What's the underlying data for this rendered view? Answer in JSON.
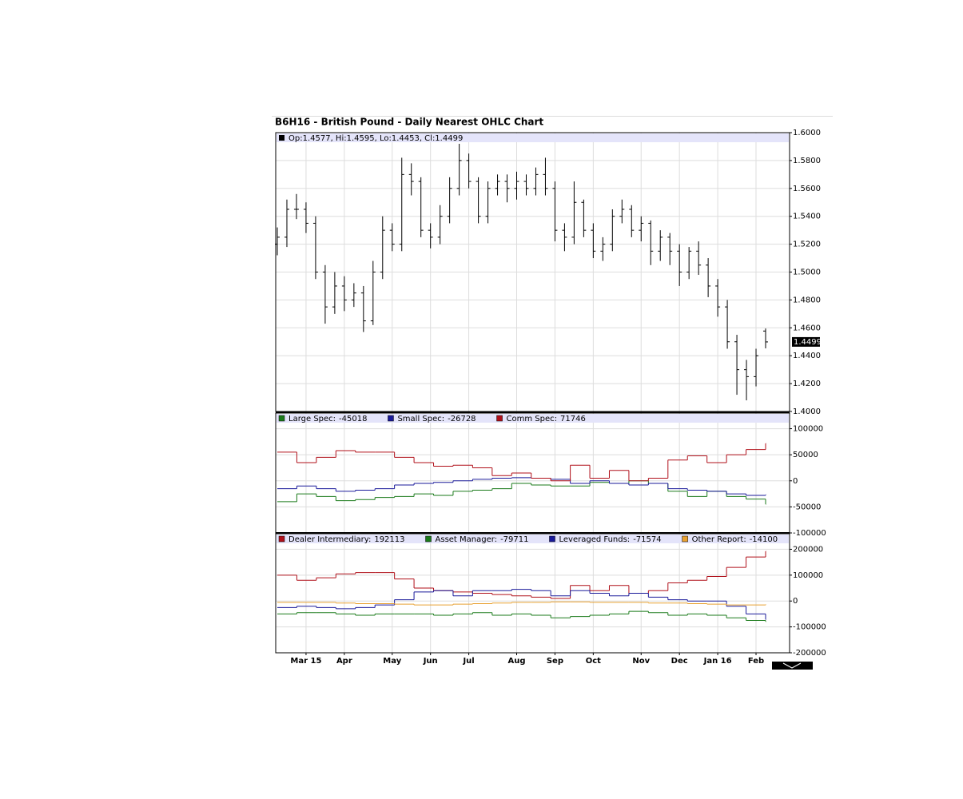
{
  "chart_data": [
    {
      "type": "ohlc",
      "title": "B6H16 - British Pound - Daily Nearest OHLC Chart",
      "legend_text": "Op:1.4577, Hi:1.4595, Lo:1.4453, Cl:1.4499",
      "color": "#000000",
      "categories": [
        null,
        null,
        null,
        "Mar 15",
        null,
        null,
        null,
        "Apr",
        null,
        null,
        null,
        null,
        "May",
        null,
        null,
        null,
        "Jun",
        null,
        null,
        null,
        "Jul",
        null,
        null,
        null,
        null,
        "Aug",
        null,
        null,
        null,
        "Sep",
        null,
        null,
        null,
        "Oct",
        null,
        null,
        null,
        null,
        "Nov",
        null,
        null,
        null,
        "Dec",
        null,
        null,
        null,
        "Jan 16",
        null,
        null,
        null,
        "Feb",
        null
      ],
      "open": [
        1.52,
        1.525,
        1.545,
        1.545,
        1.535,
        1.5,
        1.475,
        1.49,
        1.48,
        1.485,
        1.465,
        1.5,
        1.53,
        1.52,
        1.57,
        1.565,
        1.53,
        1.525,
        1.54,
        1.56,
        1.58,
        1.565,
        1.54,
        1.56,
        1.565,
        1.56,
        1.565,
        1.56,
        1.57,
        1.56,
        1.53,
        1.525,
        1.55,
        1.53,
        1.515,
        1.52,
        1.54,
        1.545,
        1.53,
        1.535,
        1.515,
        1.525,
        1.515,
        1.5,
        1.515,
        1.505,
        1.49,
        1.475,
        1.45,
        1.43,
        1.425,
        1.4577
      ],
      "high": [
        1.532,
        1.552,
        1.556,
        1.55,
        1.54,
        1.505,
        1.5,
        1.497,
        1.492,
        1.49,
        1.508,
        1.54,
        1.535,
        1.582,
        1.578,
        1.568,
        1.535,
        1.548,
        1.568,
        1.592,
        1.585,
        1.568,
        1.565,
        1.57,
        1.57,
        1.572,
        1.57,
        1.575,
        1.582,
        1.565,
        1.535,
        1.565,
        1.552,
        1.535,
        1.525,
        1.545,
        1.552,
        1.548,
        1.54,
        1.537,
        1.53,
        1.528,
        1.52,
        1.518,
        1.522,
        1.51,
        1.495,
        1.48,
        1.455,
        1.437,
        1.445,
        1.4595
      ],
      "low": [
        1.512,
        1.518,
        1.538,
        1.528,
        1.495,
        1.463,
        1.47,
        1.472,
        1.475,
        1.457,
        1.462,
        1.495,
        1.515,
        1.515,
        1.555,
        1.525,
        1.517,
        1.52,
        1.535,
        1.555,
        1.56,
        1.535,
        1.535,
        1.555,
        1.55,
        1.552,
        1.555,
        1.555,
        1.555,
        1.522,
        1.515,
        1.52,
        1.525,
        1.51,
        1.508,
        1.515,
        1.535,
        1.525,
        1.522,
        1.505,
        1.508,
        1.505,
        1.49,
        1.495,
        1.498,
        1.482,
        1.468,
        1.445,
        1.412,
        1.408,
        1.418,
        1.4453
      ],
      "close": [
        1.525,
        1.545,
        1.545,
        1.535,
        1.5,
        1.475,
        1.49,
        1.48,
        1.485,
        1.465,
        1.5,
        1.53,
        1.52,
        1.57,
        1.565,
        1.53,
        1.525,
        1.54,
        1.56,
        1.58,
        1.565,
        1.54,
        1.56,
        1.565,
        1.56,
        1.565,
        1.56,
        1.57,
        1.56,
        1.53,
        1.525,
        1.55,
        1.53,
        1.515,
        1.52,
        1.54,
        1.545,
        1.53,
        1.535,
        1.515,
        1.525,
        1.515,
        1.5,
        1.515,
        1.505,
        1.49,
        1.475,
        1.45,
        1.43,
        1.425,
        1.44,
        1.4499
      ],
      "ylim": [
        1.4,
        1.6
      ],
      "yticks": [
        {
          "value": 1.6,
          "label": "1.6000"
        },
        {
          "value": 1.58,
          "label": "1.5800"
        },
        {
          "value": 1.56,
          "label": "1.5600"
        },
        {
          "value": 1.54,
          "label": "1.5400"
        },
        {
          "value": 1.52,
          "label": "1.5200"
        },
        {
          "value": 1.5,
          "label": "1.5000"
        },
        {
          "value": 1.48,
          "label": "1.4800"
        },
        {
          "value": 1.46,
          "label": "1.4600"
        },
        {
          "value": 1.44,
          "label": "1.4400"
        },
        {
          "value": 1.42,
          "label": "1.4200"
        },
        {
          "value": 1.4,
          "label": "1.4000"
        }
      ],
      "grid": true
    },
    {
      "type": "step",
      "series": [
        {
          "name": "Large Spec:",
          "color": "#1a7a1a",
          "values": [
            -40000,
            -25000,
            -30000,
            -38000,
            -36000,
            -32000,
            -30000,
            -25000,
            -28000,
            -20000,
            -18000,
            -15000,
            -5000,
            -8000,
            -10000,
            -10000,
            -3000,
            -5000,
            0,
            -5000,
            -20000,
            -30000,
            -20000,
            -30000,
            -35000,
            -45018
          ]
        },
        {
          "name": "Small Spec:",
          "color": "#1a1a9a",
          "values": [
            -15000,
            -10000,
            -15000,
            -20000,
            -18000,
            -15000,
            -8000,
            -5000,
            -3000,
            0,
            3000,
            5000,
            6000,
            5000,
            3000,
            -5000,
            0,
            -5000,
            -8000,
            -5000,
            -15000,
            -18000,
            -20000,
            -25000,
            -28000,
            -26728
          ]
        },
        {
          "name": "Comm Spec:",
          "color": "#b0101a",
          "values": [
            55000,
            35000,
            45000,
            58000,
            55000,
            55000,
            45000,
            35000,
            28000,
            30000,
            25000,
            10000,
            15000,
            5000,
            0,
            30000,
            5000,
            20000,
            0,
            5000,
            40000,
            48000,
            35000,
            50000,
            60000,
            71746
          ]
        }
      ],
      "ylim": [
        -100000,
        130000
      ],
      "yticks": [
        100000,
        50000,
        0,
        -50000,
        -100000
      ],
      "grid": true
    },
    {
      "type": "step",
      "series": [
        {
          "name": "Dealer Intermediary:",
          "color": "#b0101a",
          "values": [
            100000,
            80000,
            90000,
            105000,
            110000,
            110000,
            85000,
            50000,
            40000,
            35000,
            30000,
            25000,
            20000,
            15000,
            10000,
            60000,
            40000,
            60000,
            30000,
            40000,
            70000,
            80000,
            95000,
            130000,
            170000,
            192113
          ]
        },
        {
          "name": "Asset Manager:",
          "color": "#1a7a1a",
          "values": [
            -50000,
            -45000,
            -45000,
            -50000,
            -55000,
            -50000,
            -50000,
            -50000,
            -55000,
            -50000,
            -45000,
            -55000,
            -50000,
            -55000,
            -65000,
            -60000,
            -55000,
            -50000,
            -40000,
            -45000,
            -55000,
            -50000,
            -55000,
            -65000,
            -75000,
            -79711
          ]
        },
        {
          "name": "Leveraged Funds:",
          "color": "#1a1a9a",
          "values": [
            -25000,
            -20000,
            -25000,
            -30000,
            -25000,
            -15000,
            5000,
            35000,
            40000,
            20000,
            40000,
            40000,
            45000,
            40000,
            20000,
            40000,
            30000,
            20000,
            30000,
            15000,
            5000,
            0,
            0,
            -20000,
            -50000,
            -71574
          ]
        },
        {
          "name": "Other Report:",
          "color": "#e8a030",
          "values": [
            -5000,
            -5000,
            -5000,
            -8000,
            -10000,
            -10000,
            -12000,
            -15000,
            -15000,
            -12000,
            -10000,
            -8000,
            -5000,
            -5000,
            -3000,
            -3000,
            -5000,
            -5000,
            -5000,
            -8000,
            -8000,
            -10000,
            -12000,
            -15000,
            -15000,
            -14100
          ]
        }
      ],
      "ylim": [
        -200000,
        260000
      ],
      "yticks": [
        200000,
        100000,
        0,
        -100000,
        -200000
      ],
      "grid": true
    }
  ]
}
